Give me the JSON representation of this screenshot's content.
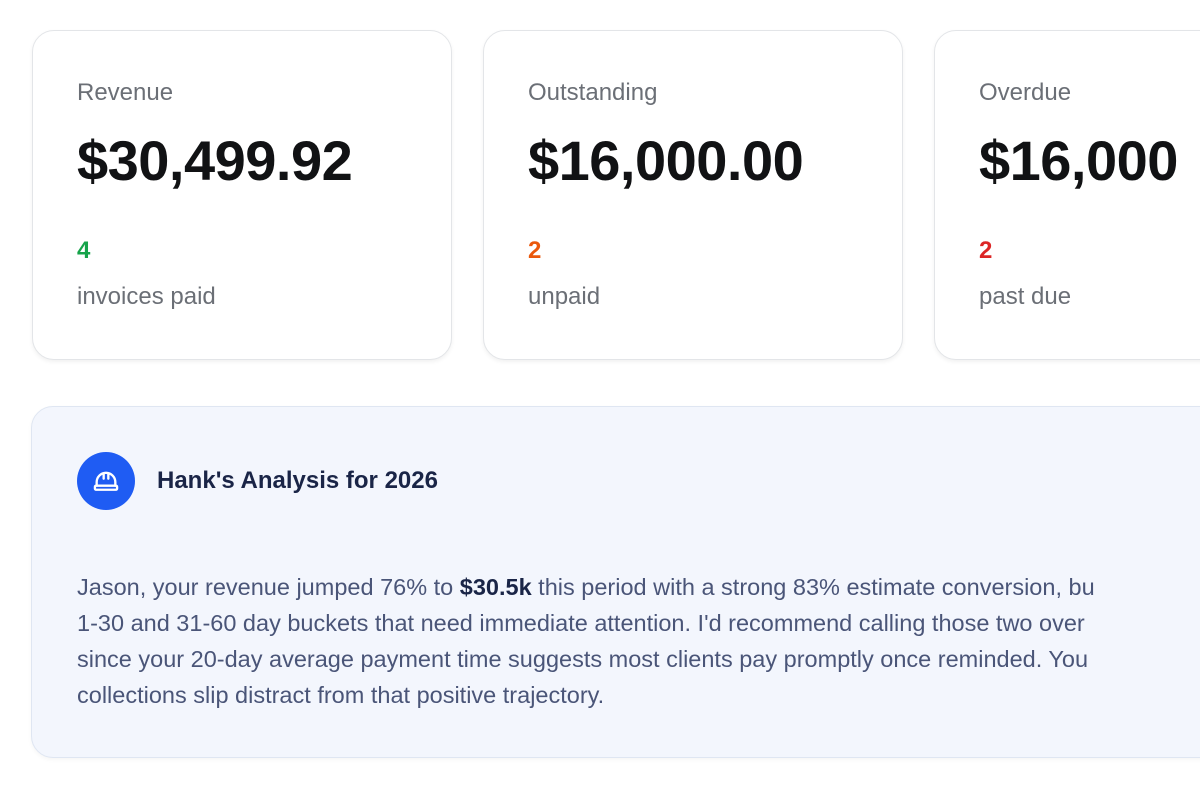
{
  "cards": [
    {
      "label": "Revenue",
      "value": "$30,499.92",
      "count": "4",
      "count_color": "#16a34a",
      "sub": "invoices paid"
    },
    {
      "label": "Outstanding",
      "value": "$16,000.00",
      "count": "2",
      "count_color": "#ea580c",
      "sub": "unpaid"
    },
    {
      "label": "Overdue",
      "value": "$16,000",
      "count": "2",
      "count_color": "#dc2626",
      "sub": "past due"
    }
  ],
  "analysis": {
    "icon": "hard-hat-icon",
    "title": "Hank's Analysis for 2026",
    "text_before": "Jason, your revenue jumped 76% to ",
    "highlight": "$30.5k",
    "text_after": " this period with a strong 83% estimate conversion, bu\n1-30 and 31-60 day buckets that need immediate attention. I'd recommend calling those two over\nsince your 20-day average payment time suggests most clients pay promptly once reminded. You\ncollections slip distract from that positive trajectory."
  },
  "colors": {
    "accent": "#1f5cf3",
    "paid": "#16a34a",
    "unpaid": "#ea580c",
    "overdue": "#dc2626",
    "panel_bg": "#f3f6fd"
  }
}
